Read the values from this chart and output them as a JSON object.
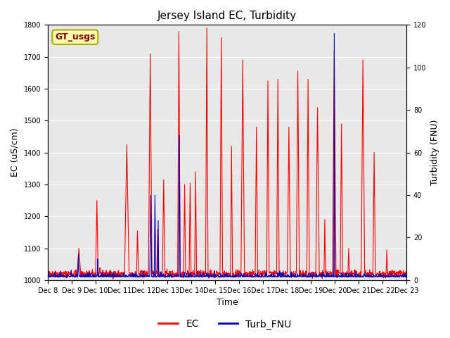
{
  "title": "Jersey Island EC, Turbidity",
  "xlabel": "Time",
  "ylabel_left": "EC (uS/cm)",
  "ylabel_right": "Turbidity (FNU)",
  "ec_color": "#FF0000",
  "turb_color": "#0000BB",
  "background_color": "#E8E8E8",
  "ylim_left": [
    1000,
    1800
  ],
  "ylim_right": [
    0,
    120
  ],
  "yticks_left": [
    1000,
    1100,
    1200,
    1300,
    1400,
    1500,
    1600,
    1700,
    1800
  ],
  "yticks_right": [
    0,
    20,
    40,
    60,
    80,
    100,
    120
  ],
  "xtick_labels": [
    "Dec 8",
    "Dec 9",
    "Dec 10",
    "Dec 11",
    "Dec 12",
    "Dec 13",
    "Dec 14",
    "Dec 15",
    "Dec 16",
    "Dec 17",
    "Dec 18",
    "Dec 19",
    "Dec 20",
    "Dec 21",
    "Dec 22",
    "Dec 23"
  ],
  "legend_label_ec": "EC",
  "legend_label_turb": "Turb_FNU",
  "annotation_text": "GT_usgs",
  "annotation_bg": "#FFFFAA",
  "annotation_border": "#AAAA00",
  "line_width": 0.8,
  "tick_fontsize": 7,
  "label_fontsize": 9,
  "title_fontsize": 11
}
